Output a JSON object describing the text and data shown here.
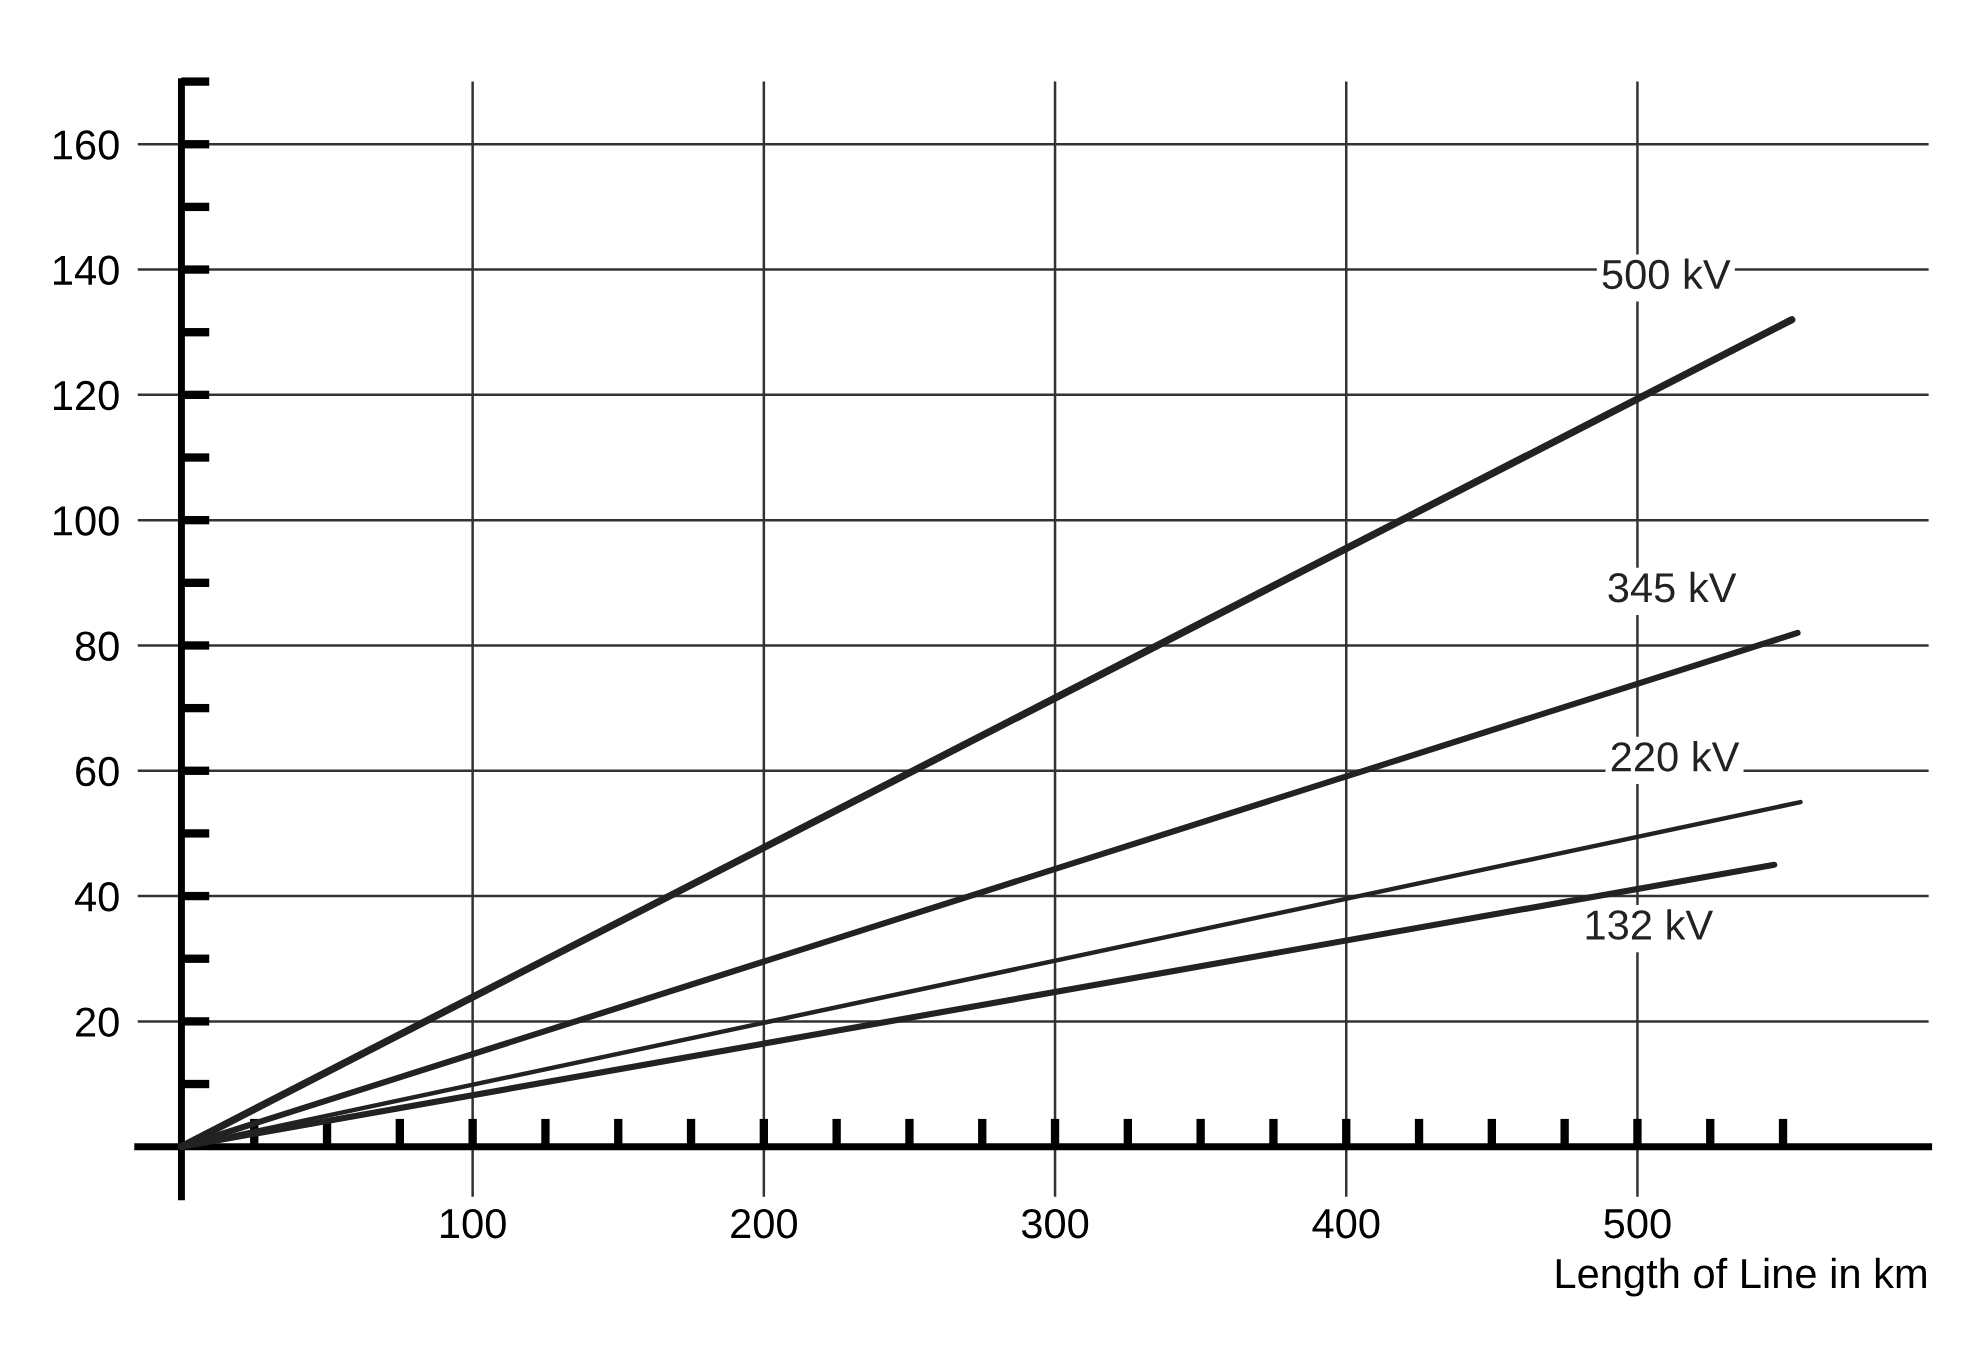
{
  "chart_data": {
    "type": "line",
    "xlabel": "Length of Line in km",
    "series": [
      {
        "name": "500 kV",
        "color": "#222222",
        "x": [
          0,
          553
        ],
        "values": [
          0,
          132
        ]
      },
      {
        "name": "345 kV",
        "color": "#222222",
        "x": [
          0,
          555
        ],
        "values": [
          0,
          82
        ]
      },
      {
        "name": "220 kV",
        "color": "#222222",
        "x": [
          0,
          556
        ],
        "values": [
          0,
          55
        ]
      },
      {
        "name": "132 kV",
        "color": "#222222",
        "x": [
          0,
          547
        ],
        "values": [
          0,
          45
        ]
      }
    ],
    "xlim": [
      -15,
      600
    ],
    "ylim": [
      -8,
      170
    ],
    "xticks": [
      {
        "value": 25,
        "label": null
      },
      {
        "value": 50,
        "label": null
      },
      {
        "value": 75,
        "label": null
      },
      100,
      {
        "value": 125,
        "label": null
      },
      {
        "value": 150,
        "label": null
      },
      {
        "value": 175,
        "label": null
      },
      200,
      {
        "value": 225,
        "label": null
      },
      {
        "value": 250,
        "label": null
      },
      {
        "value": 275,
        "label": null
      },
      300,
      {
        "value": 325,
        "label": null
      },
      {
        "value": 350,
        "label": null
      },
      {
        "value": 375,
        "label": null
      },
      400,
      {
        "value": 425,
        "label": null
      },
      {
        "value": 450,
        "label": null
      },
      {
        "value": 475,
        "label": null
      },
      500,
      {
        "value": 525,
        "label": null
      },
      {
        "value": 550,
        "label": null
      }
    ],
    "yticks": [
      {
        "value": 10,
        "label": null
      },
      20,
      {
        "value": 30,
        "label": null
      },
      40,
      {
        "value": 50,
        "label": null
      },
      60,
      {
        "value": 70,
        "label": null
      },
      80,
      {
        "value": 90,
        "label": null
      },
      100,
      {
        "value": 110,
        "label": null
      },
      120,
      {
        "value": 130,
        "label": null
      },
      140,
      {
        "value": 150,
        "label": null
      },
      160,
      {
        "value": 170,
        "label": null
      }
    ],
    "grid": true,
    "marker": "none",
    "line_style": "solid",
    "legend": false
  }
}
